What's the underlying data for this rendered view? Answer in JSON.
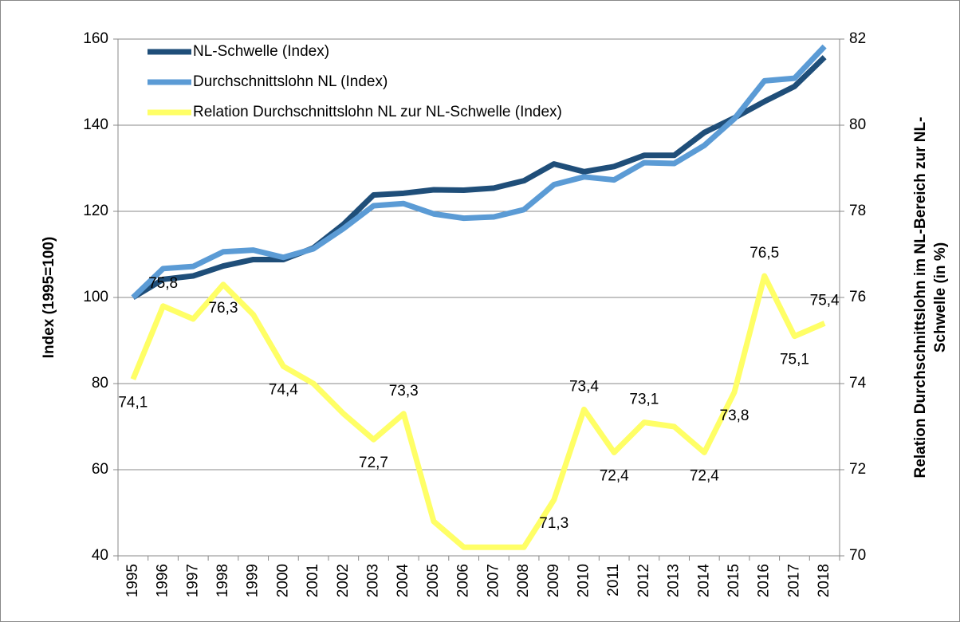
{
  "chart_data": {
    "type": "line",
    "y_label": "Index (1995=100)",
    "y2_label": [
      "Relation Durchschnittslohn im NL-Bereich  zur NL-",
      "Schwelle (in %)"
    ],
    "categories": [
      "1995",
      "1996",
      "1997",
      "1998",
      "1999",
      "2000",
      "2001",
      "2002",
      "2003",
      "2004",
      "2005",
      "2006",
      "2007",
      "2008",
      "2009",
      "2010",
      "2011",
      "2012",
      "2013",
      "2014",
      "2015",
      "2016",
      "2017",
      "2018"
    ],
    "ylim": [
      40,
      160
    ],
    "yticks": [
      40,
      60,
      80,
      100,
      120,
      140,
      160
    ],
    "y2lim": [
      70,
      82
    ],
    "y2ticks": [
      70,
      72,
      74,
      76,
      78,
      80,
      82
    ],
    "grid": true,
    "legend": "top-left",
    "series": [
      {
        "name": "NL-Schwelle (Index)",
        "color": "#1f4e79",
        "values": [
          100,
          104.2,
          105,
          107.3,
          108.8,
          108.8,
          111.5,
          117,
          123.8,
          124.2,
          125,
          124.9,
          125.4,
          127.1,
          131,
          129.2,
          130.4,
          133,
          133,
          138.3,
          141.7,
          145.5,
          149,
          155.8
        ]
      },
      {
        "name": "Durchschnittslohn NL (Index)",
        "color": "#5b9bd5",
        "values": [
          100,
          106.7,
          107.2,
          110.6,
          111,
          109.3,
          111.3,
          116,
          121.3,
          121.8,
          119.4,
          118.4,
          118.7,
          120.4,
          126.2,
          128,
          127.3,
          131.3,
          131.1,
          135.3,
          141.5,
          150.3,
          150.9,
          158.3
        ]
      },
      {
        "name": "Relation Durchschnittslohn NL zur NL-Schwelle (Index)",
        "color": "#ffff66",
        "axis": "y2",
        "values": [
          74.1,
          75.8,
          75.5,
          76.3,
          75.6,
          74.4,
          74.0,
          73.3,
          72.7,
          73.3,
          70.8,
          70.2,
          70.2,
          70.2,
          71.3,
          73.4,
          72.4,
          73.1,
          73.0,
          72.4,
          73.8,
          76.5,
          75.1,
          75.4
        ],
        "value_labels": [
          "74,1",
          "75,8",
          null,
          "76,3",
          null,
          "74,4",
          null,
          null,
          "72,7",
          "73,3",
          null,
          null,
          null,
          null,
          "71,3",
          "73,4",
          "72,4",
          "73,1",
          null,
          "72,4",
          "73,8",
          "76,5",
          "75,1",
          "75,4"
        ]
      }
    ]
  }
}
